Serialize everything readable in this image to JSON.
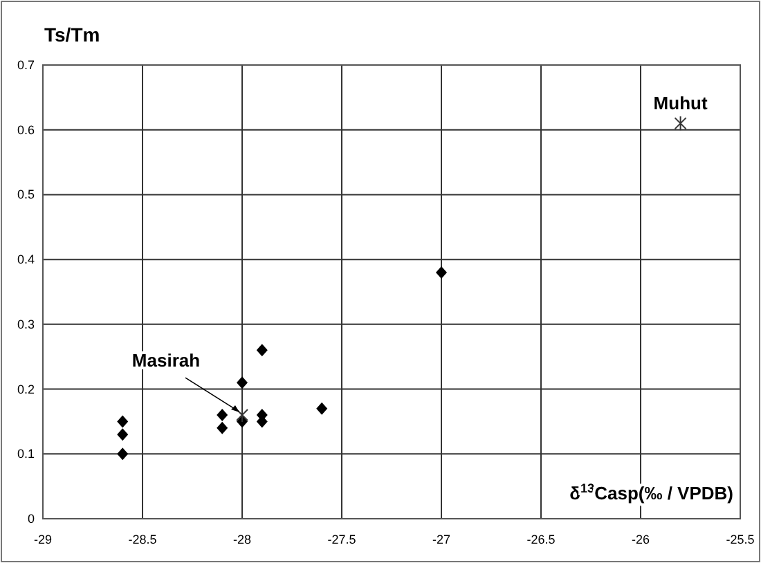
{
  "chart_data": {
    "type": "scatter",
    "xlabel": "δ$^{13}$Casp(‰ / VPDB)",
    "ylabel": "Ts/Tm",
    "xlim": [
      -29,
      -25.5
    ],
    "xticks": [
      -29,
      -28.5,
      -28,
      -27.5,
      -27,
      -26.5,
      -26,
      -25.5
    ],
    "ylim": [
      0,
      0.7
    ],
    "yticks": [
      0,
      0.1,
      0.2,
      0.3,
      0.4,
      0.5,
      0.6,
      0.7
    ],
    "grid": true,
    "series": [
      {
        "color": "#000000",
        "marker": "diamond",
        "x": [
          -28.6,
          -28.6,
          -28.6,
          -28.1,
          -28.1,
          -28,
          -28,
          -27.9,
          -27.9,
          -27.9,
          -27.6,
          -27
        ],
        "values": [
          0.15,
          0.13,
          0.1,
          0.16,
          0.14,
          0.21,
          0.15,
          0.26,
          0.16,
          0.15,
          0.17,
          0.38
        ]
      },
      {
        "color": "#333333",
        "marker": "cross",
        "x": [
          -28,
          -25.8
        ],
        "values": [
          0.16,
          0.61
        ]
      }
    ],
    "annotations": [
      {
        "text": "Masirah",
        "x": -28,
        "y": 0.16
      },
      {
        "text": "Muhut",
        "x": -25.8,
        "y": 0.61
      }
    ]
  }
}
